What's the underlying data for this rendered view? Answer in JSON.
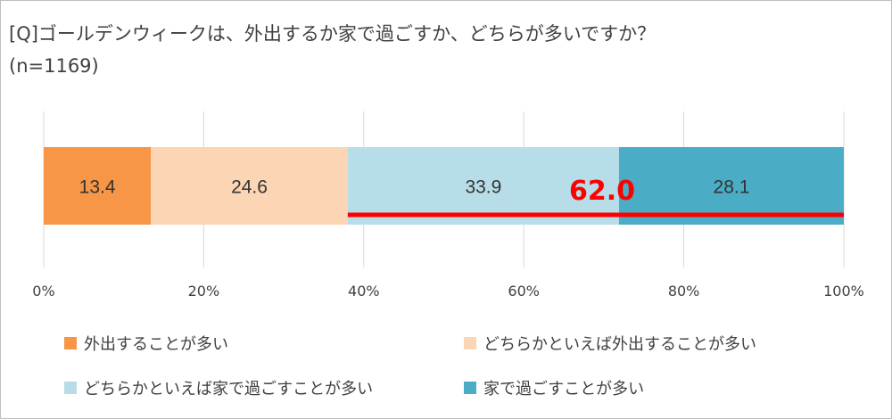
{
  "title": "[Q]ゴールデンウィークは、外出するか家で過ごすか、どちらが多いですか？",
  "subtitle": "(n=1169)",
  "chart_data": {
    "type": "bar",
    "orientation": "horizontal-stacked-100",
    "series": [
      {
        "name": "外出することが多い",
        "value": 13.4,
        "color": "#F79646"
      },
      {
        "name": "どちらかといえば外出することが多い",
        "value": 24.6,
        "color": "#FCD5B4"
      },
      {
        "name": "どちらかといえば家で過ごすことが多い",
        "value": 33.9,
        "color": "#B7DEE8"
      },
      {
        "name": "家で過ごすことが多い",
        "value": 28.1,
        "color": "#4BACC6"
      }
    ],
    "x_ticks": [
      "0%",
      "20%",
      "40%",
      "60%",
      "80%",
      "100%"
    ],
    "xlim": [
      0,
      100
    ],
    "grid": true,
    "legend_position": "bottom",
    "annotation": {
      "text": "62.0",
      "from": 38.0,
      "to": 100,
      "color": "#FF0000"
    }
  }
}
